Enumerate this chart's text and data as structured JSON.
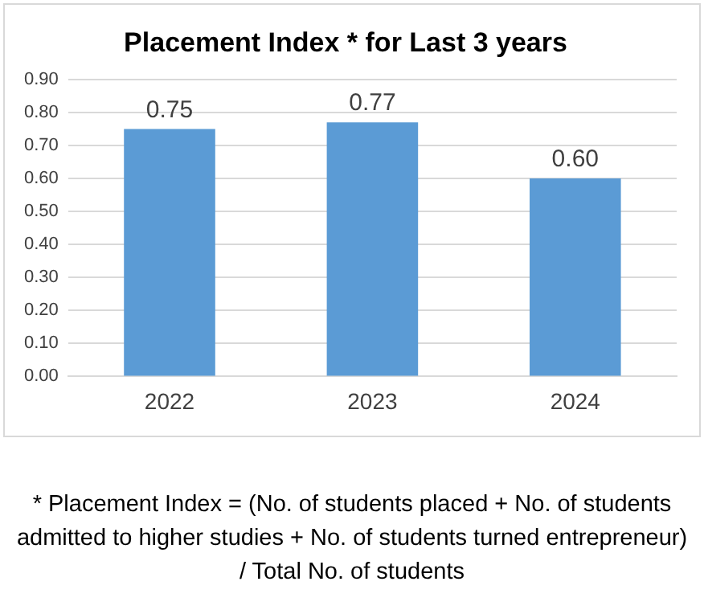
{
  "chart_data": {
    "type": "bar",
    "title": "Placement Index * for Last 3 years",
    "categories": [
      "2022",
      "2023",
      "2024"
    ],
    "values": [
      0.75,
      0.77,
      0.6
    ],
    "value_labels": [
      "0.75",
      "0.77",
      "0.60"
    ],
    "color": "#5b9bd5",
    "ylim": [
      0,
      0.9
    ],
    "yticks": [
      {
        "value": 0,
        "label": "0.00"
      },
      {
        "value": 0.1,
        "label": "0.10"
      },
      {
        "value": 0.2,
        "label": "0.20"
      },
      {
        "value": 0.3,
        "label": "0.30"
      },
      {
        "value": 0.4,
        "label": "0.40"
      },
      {
        "value": 0.5,
        "label": "0.50"
      },
      {
        "value": 0.6,
        "label": "0.60"
      },
      {
        "value": 0.7,
        "label": "0.70"
      },
      {
        "value": 0.8,
        "label": "0.80"
      },
      {
        "value": 0.9,
        "label": "0.90"
      }
    ],
    "grid": "y",
    "annotations": [
      "* Placement Index = (No. of students placed + No. of students admitted to higher studies + No. of students turned entrepreneur) / Total No. of students"
    ]
  }
}
